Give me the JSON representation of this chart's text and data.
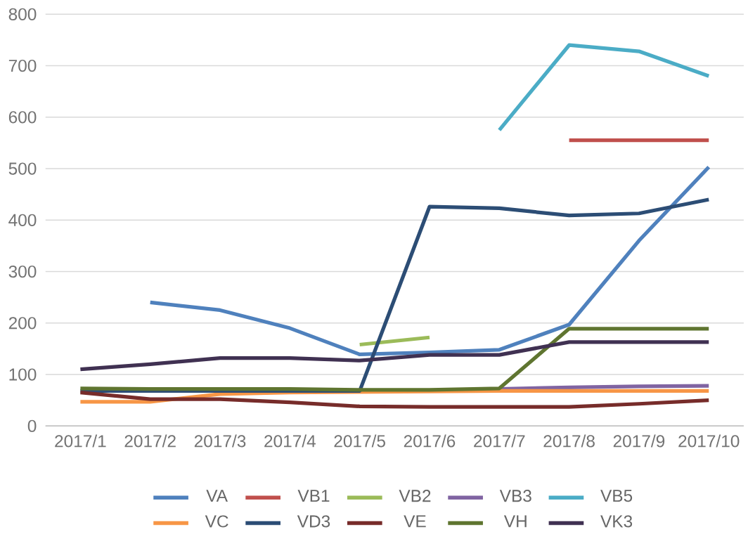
{
  "chart_data": {
    "type": "line",
    "categories": [
      "2017/1",
      "2017/2",
      "2017/3",
      "2017/4",
      "2017/5",
      "2017/6",
      "2017/7",
      "2017/8",
      "2017/9",
      "2017/10"
    ],
    "ylim": [
      0,
      800
    ],
    "yticks": [
      0,
      100,
      200,
      300,
      400,
      500,
      600,
      700,
      800
    ],
    "grid": "y",
    "legend": "bottom",
    "marker": "none",
    "series": [
      {
        "name": "VA",
        "color": "#4f81bd",
        "values": [
          null,
          240,
          225,
          190,
          139,
          143,
          148,
          197,
          360,
          503
        ]
      },
      {
        "name": "VB1",
        "color": "#c0504d",
        "values": [
          null,
          null,
          null,
          null,
          null,
          null,
          null,
          555,
          555,
          555
        ]
      },
      {
        "name": "VB2",
        "color": "#9bbb59",
        "values": [
          null,
          null,
          null,
          null,
          158,
          172,
          null,
          null,
          null,
          null
        ]
      },
      {
        "name": "VB3",
        "color": "#8064a2",
        "values": [
          null,
          null,
          null,
          null,
          null,
          null,
          72,
          75,
          77,
          78
        ]
      },
      {
        "name": "VB5",
        "color": "#4bacc6",
        "values": [
          null,
          null,
          null,
          null,
          null,
          null,
          575,
          740,
          728,
          680
        ]
      },
      {
        "name": "VC",
        "color": "#f79646",
        "values": [
          47,
          47,
          62,
          65,
          66,
          67,
          68,
          68,
          68,
          68
        ]
      },
      {
        "name": "VD3",
        "color": "#2c4d75",
        "values": [
          68,
          68,
          68,
          68,
          68,
          426,
          423,
          409,
          413,
          440
        ]
      },
      {
        "name": "VE",
        "color": "#772c2a",
        "values": [
          65,
          52,
          52,
          46,
          38,
          37,
          37,
          37,
          43,
          50
        ]
      },
      {
        "name": "VH",
        "color": "#5f7530",
        "values": [
          73,
          72,
          72,
          72,
          70,
          70,
          73,
          189,
          189,
          189
        ]
      },
      {
        "name": "VK3",
        "color": "#403152",
        "values": [
          110,
          120,
          132,
          132,
          127,
          138,
          138,
          163,
          163,
          163
        ]
      }
    ]
  }
}
